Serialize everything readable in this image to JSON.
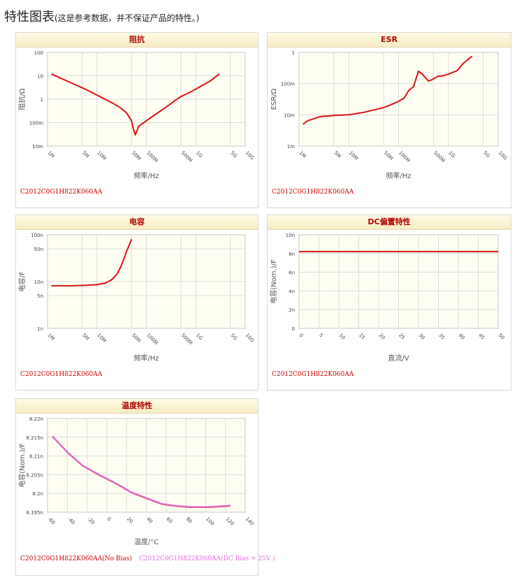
{
  "page": {
    "title": "特性图表",
    "note": "(这是参考数据，并不保证产品的特性。)"
  },
  "colors": {
    "series_red": "#dd1111",
    "series_pink": "#e070e0",
    "plot_bg": "#fffef2",
    "grid": "#dcdcdc"
  },
  "chart_data": [
    {
      "id": "impedance",
      "type": "line",
      "title": "阻抗",
      "xlabel": "频率/Hz",
      "ylabel": "阻抗/Ω",
      "xscale": "log",
      "yscale": "log",
      "xlim": [
        1000000,
        10000000000
      ],
      "ylim": [
        0.01,
        100
      ],
      "xticks": [
        "1M",
        "5M",
        "10M",
        "50M",
        "100M",
        "500M",
        "1G",
        "5G",
        "10G"
      ],
      "yticks": [
        "100",
        "10",
        "1",
        "100m",
        "10m"
      ],
      "series": [
        {
          "name": "C2012C0G1H822K060AA",
          "color": "#dd1111",
          "x": [
            1200000.0,
            3000000.0,
            6000000.0,
            10000000.0,
            20000000.0,
            30000000.0,
            40000000.0,
            50000000.0,
            55000000.0,
            60000000.0,
            70000000.0,
            100000000.0,
            200000000.0,
            300000000.0,
            400000000.0,
            500000000.0,
            700000000.0,
            1000000000.0,
            2000000000.0,
            3000000000.0
          ],
          "y": [
            12,
            5,
            2.6,
            1.5,
            0.72,
            0.43,
            0.26,
            0.12,
            0.05,
            0.03,
            0.07,
            0.12,
            0.33,
            0.6,
            0.95,
            1.3,
            1.8,
            2.7,
            6.2,
            12
          ]
        }
      ],
      "footer": [
        "C2012C0G1H822K060AA"
      ]
    },
    {
      "id": "esr",
      "type": "line",
      "title": "ESR",
      "xlabel": "频率/Hz",
      "ylabel": "ESR/Ω",
      "xscale": "log",
      "yscale": "log",
      "xlim": [
        1000000,
        10000000000
      ],
      "ylim": [
        0.001,
        1
      ],
      "xticks": [
        "1M",
        "5M",
        "10M",
        "50M",
        "100M",
        "500M",
        "1G",
        "5G",
        "10G"
      ],
      "yticks": [
        "1",
        "100m",
        "10m",
        "1m"
      ],
      "series": [
        {
          "name": "C2012C0G1H822K060AA",
          "color": "#dd1111",
          "x": [
            1200000.0,
            1500000.0,
            2000000.0,
            2500000.0,
            3000000.0,
            4000000.0,
            5000000.0,
            7000000.0,
            10000000.0,
            20000000.0,
            30000000.0,
            50000000.0,
            70000000.0,
            100000000.0,
            130000000.0,
            160000000.0,
            200000000.0,
            250000000.0,
            300000000.0,
            400000000.0,
            500000000.0,
            600000000.0,
            800000000.0,
            1000000000.0,
            1500000000.0,
            2000000000.0,
            2500000000.0,
            3000000000.0
          ],
          "y": [
            0.005,
            0.0065,
            0.0075,
            0.0085,
            0.009,
            0.0092,
            0.0095,
            0.0098,
            0.01,
            0.012,
            0.014,
            0.017,
            0.021,
            0.027,
            0.035,
            0.06,
            0.08,
            0.25,
            0.2,
            0.12,
            0.14,
            0.17,
            0.18,
            0.2,
            0.26,
            0.45,
            0.6,
            0.75
          ]
        }
      ],
      "footer": [
        "C2012C0G1H822K060AA"
      ]
    },
    {
      "id": "capacitance",
      "type": "line",
      "title": "电容",
      "xlabel": "频率/Hz",
      "ylabel": "电容/F",
      "xscale": "log",
      "yscale": "log",
      "xlim": [
        1000000,
        10000000000
      ],
      "ylim": [
        1e-09,
        1e-07
      ],
      "xticks": [
        "1M",
        "5M",
        "10M",
        "50M",
        "100M",
        "500M",
        "1G",
        "5G",
        "10G"
      ],
      "yticks": [
        "100n",
        "50n",
        "10n",
        "5n",
        "1n"
      ],
      "series": [
        {
          "name": "C2012C0G1H822K060AA",
          "color": "#dd1111",
          "x": [
            1200000.0,
            3000000.0,
            6000000.0,
            10000000.0,
            15000000.0,
            20000000.0,
            25000000.0,
            30000000.0,
            35000000.0,
            40000000.0,
            45000000.0,
            50000000.0
          ],
          "y": [
            8.1e-09,
            8.15e-09,
            8.3e-09,
            8.6e-09,
            9.3e-09,
            1.1e-08,
            1.4e-08,
            2e-08,
            3e-08,
            4.5e-08,
            6e-08,
            8e-08
          ]
        }
      ],
      "footer": [
        "C2012C0G1H822K060AA"
      ]
    },
    {
      "id": "dcbias",
      "type": "line",
      "title": "DC偏置特性",
      "xlabel": "直流/V",
      "ylabel": "电容(Nom.)/F",
      "xscale": "linear",
      "yscale": "linear",
      "xlim": [
        0,
        50
      ],
      "ylim": [
        0,
        10
      ],
      "xticks": [
        "0",
        "5",
        "10",
        "15",
        "20",
        "25",
        "30",
        "35",
        "40",
        "45",
        "50"
      ],
      "yticks": [
        "10n",
        "8n",
        "6n",
        "4n",
        "2n",
        "0"
      ],
      "series": [
        {
          "name": "C2012C0G1H822K060AA",
          "color": "#dd1111",
          "x": [
            0,
            50
          ],
          "y": [
            8.2,
            8.2
          ]
        }
      ],
      "footer": [
        "C2012C0G1H822K060AA"
      ]
    },
    {
      "id": "temperature",
      "type": "line",
      "title": "温度特性",
      "xlabel": "温度/°C",
      "ylabel": "电容(Nom.)/F",
      "xscale": "linear",
      "yscale": "linear",
      "xlim": [
        -60,
        140
      ],
      "ylim": [
        8.195,
        8.22
      ],
      "xticks": [
        "-60",
        "-40",
        "-20",
        "0",
        "20",
        "40",
        "60",
        "80",
        "100",
        "120",
        "140"
      ],
      "yticks": [
        "8.22n",
        "8.215n",
        "8.21n",
        "8.205n",
        "8.2n",
        "8.195n"
      ],
      "series": [
        {
          "name": "C2012C0G1H822K060AA(No Bias)",
          "color": "#dd1111",
          "x": [
            -55,
            -40,
            -25,
            -10,
            5,
            15,
            25,
            40,
            55,
            70,
            85,
            100,
            115,
            125
          ],
          "y": [
            8.2152,
            8.211,
            8.2075,
            8.2052,
            8.2032,
            8.2018,
            8.2002,
            8.1987,
            8.1972,
            8.1966,
            8.1963,
            8.1963,
            8.1965,
            8.1967
          ]
        },
        {
          "name": "C2012C0G1H822K060AA(DC Bias = 25V )",
          "color": "#e070e0",
          "x": [
            -55,
            -40,
            -25,
            -10,
            5,
            15,
            25,
            40,
            55,
            70,
            85,
            100,
            115,
            125
          ],
          "y": [
            8.2153,
            8.2111,
            8.2076,
            8.2053,
            8.2033,
            8.2019,
            8.2003,
            8.1988,
            8.1973,
            8.1967,
            8.1964,
            8.1964,
            8.1966,
            8.1968
          ]
        }
      ],
      "footer": [
        "C2012C0G1H822K060AA(No Bias)",
        "C2012C0G1H822K060AA(DC Bias = 25V )"
      ]
    }
  ]
}
